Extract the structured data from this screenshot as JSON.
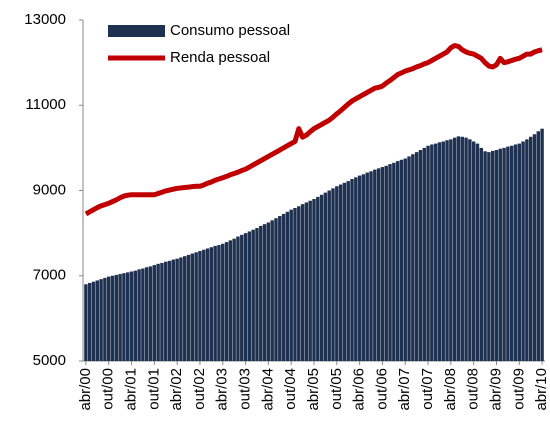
{
  "chart_data": {
    "type": "bar-line",
    "categories": [
      "abr/00",
      null,
      null,
      null,
      null,
      null,
      "out/00",
      null,
      null,
      null,
      null,
      null,
      "abr/01",
      null,
      null,
      null,
      null,
      null,
      "out/01",
      null,
      null,
      null,
      null,
      null,
      "abr/02",
      null,
      null,
      null,
      null,
      null,
      "out/02",
      null,
      null,
      null,
      null,
      null,
      "abr/03",
      null,
      null,
      null,
      null,
      null,
      "out/03",
      null,
      null,
      null,
      null,
      null,
      "abr/04",
      null,
      null,
      null,
      null,
      null,
      "out/04",
      null,
      null,
      null,
      null,
      null,
      "abr/05",
      null,
      null,
      null,
      null,
      null,
      "out/05",
      null,
      null,
      null,
      null,
      null,
      "abr/06",
      null,
      null,
      null,
      null,
      null,
      "out/06",
      null,
      null,
      null,
      null,
      null,
      "abr/07",
      null,
      null,
      null,
      null,
      null,
      "out/07",
      null,
      null,
      null,
      null,
      null,
      "abr/08",
      null,
      null,
      null,
      null,
      null,
      "out/08",
      null,
      null,
      null,
      null,
      null,
      "abr/09",
      null,
      null,
      null,
      null,
      null,
      "out/09",
      null,
      null,
      null,
      null,
      null,
      "abr/10"
    ],
    "series": [
      {
        "name": "Consumo pessoal",
        "color": "#1f3150",
        "kind": "bar",
        "values": [
          6800,
          6830,
          6860,
          6890,
          6920,
          6950,
          6980,
          7000,
          7020,
          7040,
          7060,
          7080,
          7100,
          7120,
          7150,
          7170,
          7200,
          7220,
          7250,
          7280,
          7300,
          7330,
          7350,
          7380,
          7400,
          7430,
          7460,
          7490,
          7520,
          7550,
          7580,
          7610,
          7640,
          7670,
          7700,
          7720,
          7750,
          7790,
          7830,
          7870,
          7920,
          7960,
          8000,
          8040,
          8080,
          8120,
          8170,
          8210,
          8250,
          8300,
          8350,
          8400,
          8450,
          8500,
          8550,
          8590,
          8630,
          8680,
          8720,
          8760,
          8800,
          8850,
          8900,
          8950,
          9000,
          9050,
          9100,
          9140,
          9180,
          9220,
          9270,
          9310,
          9350,
          9380,
          9420,
          9450,
          9490,
          9520,
          9550,
          9580,
          9620,
          9650,
          9690,
          9720,
          9750,
          9800,
          9850,
          9900,
          9950,
          10000,
          10050,
          10080,
          10100,
          10130,
          10150,
          10180,
          10200,
          10240,
          10270,
          10260,
          10240,
          10200,
          10150,
          10100,
          10000,
          9920,
          9900,
          9930,
          9950,
          9980,
          10000,
          10030,
          10050,
          10080,
          10100,
          10150,
          10200,
          10260,
          10320,
          10390,
          10450
        ]
      },
      {
        "name": "Renda pessoal",
        "color": "#c00000",
        "kind": "line",
        "values": [
          8450,
          8500,
          8550,
          8600,
          8640,
          8670,
          8700,
          8740,
          8780,
          8830,
          8870,
          8890,
          8900,
          8900,
          8900,
          8900,
          8900,
          8900,
          8900,
          8930,
          8960,
          8990,
          9010,
          9030,
          9050,
          9060,
          9070,
          9080,
          9090,
          9100,
          9100,
          9130,
          9170,
          9200,
          9240,
          9270,
          9300,
          9330,
          9370,
          9400,
          9430,
          9470,
          9500,
          9550,
          9600,
          9650,
          9700,
          9750,
          9800,
          9850,
          9900,
          9950,
          10000,
          10050,
          10100,
          10150,
          10450,
          10250,
          10300,
          10380,
          10450,
          10500,
          10550,
          10600,
          10650,
          10720,
          10800,
          10870,
          10950,
          11030,
          11100,
          11150,
          11200,
          11250,
          11300,
          11350,
          11400,
          11420,
          11450,
          11520,
          11580,
          11650,
          11720,
          11760,
          11800,
          11830,
          11860,
          11900,
          11930,
          11970,
          12000,
          12050,
          12100,
          12150,
          12200,
          12250,
          12350,
          12400,
          12380,
          12300,
          12250,
          12220,
          12200,
          12150,
          12100,
          12000,
          11920,
          11900,
          11950,
          12100,
          12000,
          12020,
          12050,
          12080,
          12100,
          12150,
          12200,
          12200,
          12250,
          12280,
          12300
        ]
      }
    ],
    "ylim": [
      5000,
      13000
    ],
    "yticks": [
      5000,
      7000,
      9000,
      11000,
      13000
    ],
    "grid": false,
    "legend": "top-left"
  }
}
